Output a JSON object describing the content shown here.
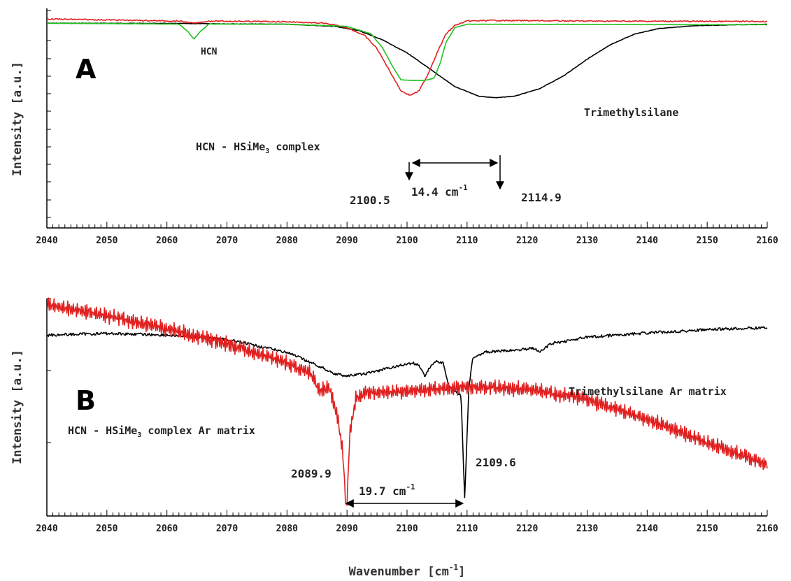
{
  "chart_data": [
    {
      "type": "line",
      "panel_label": "A",
      "xlabel": "",
      "ylabel": "Intensity [a.u.]",
      "xlim": [
        2040,
        2160
      ],
      "xticks": [
        2040,
        2050,
        2060,
        2070,
        2080,
        2090,
        2100,
        2110,
        2120,
        2130,
        2140,
        2150,
        2160
      ],
      "ylim": [
        0,
        1
      ],
      "series": [
        {
          "color": "#000000",
          "x": [
            2040,
            2060,
            2080,
            2088,
            2092,
            2096,
            2100,
            2104,
            2108,
            2112,
            2114.9,
            2118,
            2122,
            2126,
            2130,
            2134,
            2138,
            2142,
            2148,
            2155,
            2160
          ],
          "y": [
            0.94,
            0.939,
            0.935,
            0.925,
            0.905,
            0.86,
            0.8,
            0.72,
            0.64,
            0.595,
            0.588,
            0.596,
            0.63,
            0.69,
            0.77,
            0.84,
            0.89,
            0.915,
            0.928,
            0.933,
            0.935
          ]
        },
        {
          "color": "#e02020",
          "x": [
            2040,
            2062,
            2064.5,
            2067,
            2080,
            2086,
            2090,
            2093,
            2095,
            2097,
            2099,
            2100.5,
            2102,
            2103.5,
            2105,
            2106.5,
            2108,
            2110,
            2114,
            2130,
            2160
          ],
          "y": [
            0.96,
            0.95,
            0.94,
            0.95,
            0.947,
            0.94,
            0.92,
            0.88,
            0.82,
            0.72,
            0.62,
            0.6,
            0.62,
            0.7,
            0.8,
            0.89,
            0.93,
            0.95,
            0.953,
            0.95,
            0.948
          ]
        },
        {
          "color": "#22c022",
          "x": [
            2040,
            2062,
            2063.5,
            2064.5,
            2065.5,
            2067,
            2080,
            2090,
            2094,
            2096,
            2097.5,
            2099,
            2101,
            2103,
            2104.5,
            2105.5,
            2106.5,
            2108,
            2110,
            2115,
            2130,
            2150,
            2160
          ],
          "y": [
            0.94,
            0.936,
            0.9,
            0.865,
            0.9,
            0.936,
            0.935,
            0.925,
            0.89,
            0.82,
            0.74,
            0.672,
            0.67,
            0.67,
            0.68,
            0.75,
            0.85,
            0.92,
            0.935,
            0.935,
            0.934,
            0.933,
            0.933
          ]
        }
      ],
      "annotations": {
        "hcn": "HCN",
        "complex": "HCN - HSiMe",
        "complex_sub": "3",
        "complex_tail": " complex",
        "trimethylsilane": "Trimethylsilane",
        "peak_left": "2100.5",
        "peak_right": "2114.9",
        "shift": "14.4 cm",
        "shift_sup": "-1"
      }
    },
    {
      "type": "line",
      "panel_label": "B",
      "xlabel": "Wavenumber [cm",
      "xlabel_sup": "-1",
      "xlabel_tail": "]",
      "ylabel": "Intensity [a.u.]",
      "xlim": [
        2040,
        2160
      ],
      "xticks": [
        2040,
        2050,
        2060,
        2070,
        2080,
        2090,
        2100,
        2110,
        2120,
        2130,
        2140,
        2150,
        2160
      ],
      "ylim": [
        0,
        1
      ],
      "series": [
        {
          "color": "#000000",
          "x": [
            2040,
            2050,
            2060,
            2070,
            2080,
            2085,
            2088,
            2090,
            2093,
            2096,
            2099,
            2101,
            2102,
            2103,
            2104,
            2105,
            2106,
            2107,
            2108,
            2109,
            2109.6,
            2110.3,
            2111,
            2113,
            2118,
            2121,
            2122,
            2124,
            2130,
            2140,
            2150,
            2160
          ],
          "y": [
            0.84,
            0.848,
            0.84,
            0.82,
            0.76,
            0.7,
            0.66,
            0.65,
            0.66,
            0.68,
            0.7,
            0.71,
            0.7,
            0.65,
            0.7,
            0.72,
            0.71,
            0.6,
            0.58,
            0.56,
            0.08,
            0.6,
            0.74,
            0.76,
            0.77,
            0.78,
            0.76,
            0.8,
            0.83,
            0.85,
            0.865,
            0.875
          ]
        },
        {
          "color": "#e02020",
          "x": [
            2040,
            2050,
            2060,
            2070,
            2080,
            2084,
            2085.5,
            2087,
            2088.5,
            2089.3,
            2089.9,
            2090.5,
            2091.5,
            2093,
            2100,
            2110,
            2120,
            2130,
            2140,
            2150,
            2160
          ],
          "y": [
            0.98,
            0.93,
            0.87,
            0.8,
            0.71,
            0.66,
            0.58,
            0.6,
            0.45,
            0.3,
            0.0,
            0.4,
            0.55,
            0.57,
            0.58,
            0.6,
            0.59,
            0.54,
            0.45,
            0.34,
            0.24
          ]
        }
      ],
      "annotations": {
        "complex": "HCN - HSiMe",
        "complex_sub": "3",
        "complex_tail": " complex Ar matrix",
        "trimethylsilane": "Trimethylsilane Ar matrix",
        "peak_left": "2089.9",
        "peak_right": "2109.6",
        "shift": "19.7 cm",
        "shift_sup": "-1"
      }
    }
  ]
}
